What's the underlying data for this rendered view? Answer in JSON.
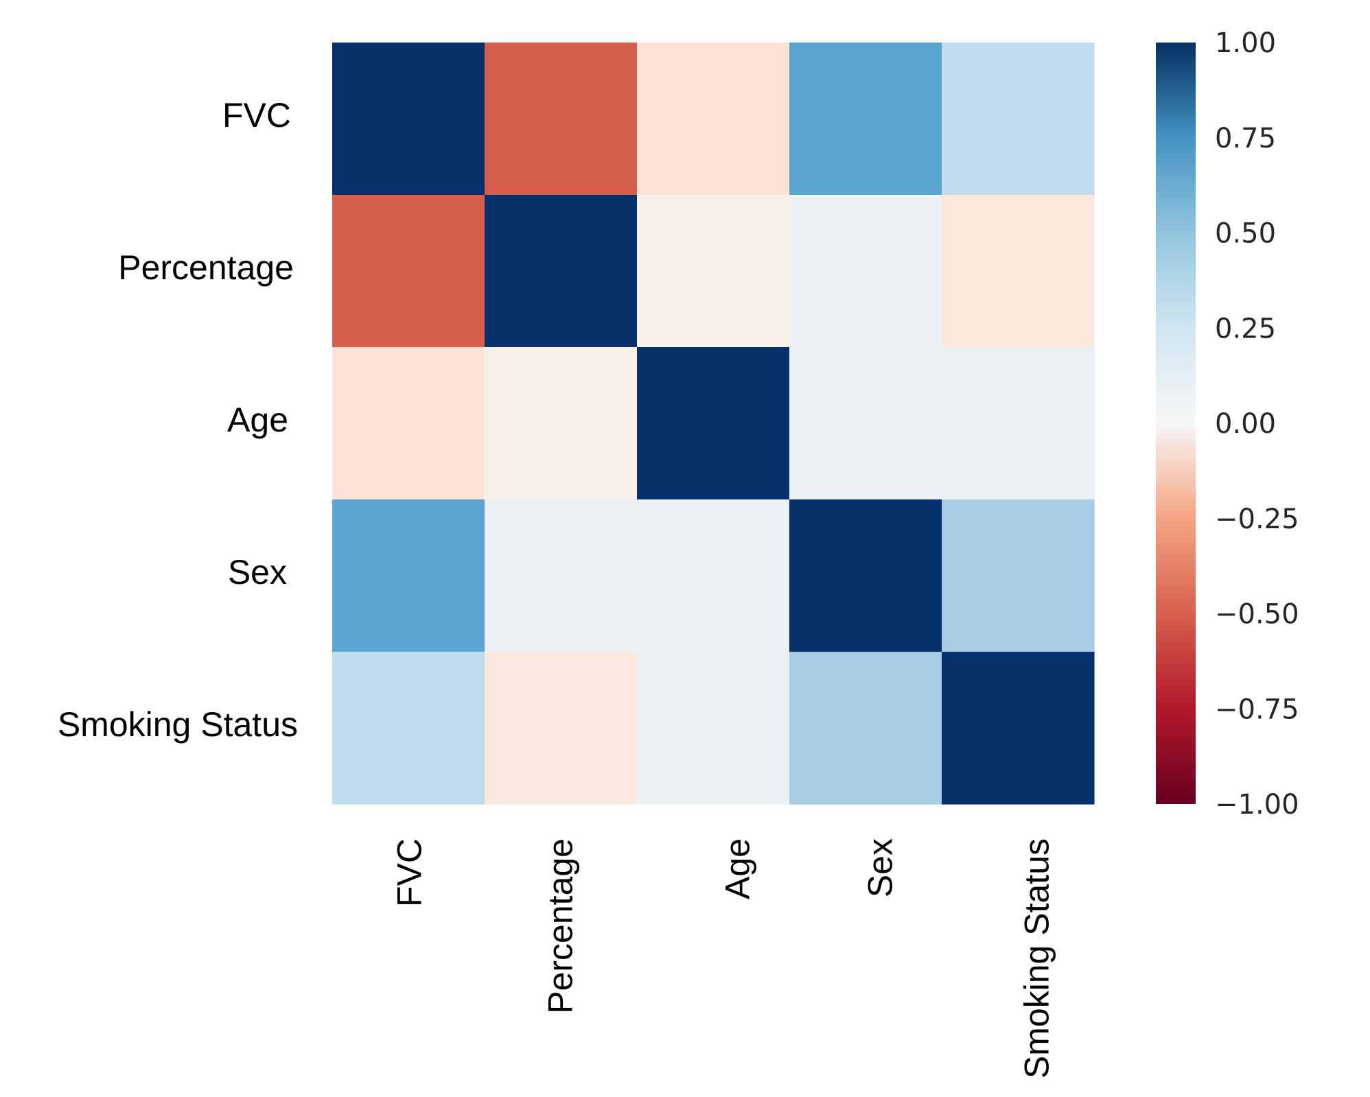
{
  "chart_data": {
    "type": "heatmap",
    "row_labels": [
      "FVC",
      "Percentage",
      "Age",
      "Sex",
      "Smoking Status"
    ],
    "col_labels": [
      "FVC",
      "Percentage",
      "Age",
      "Sex",
      "Smoking Status"
    ],
    "values": [
      [
        1.0,
        -0.55,
        -0.12,
        0.5,
        0.26
      ],
      [
        -0.55,
        1.0,
        -0.05,
        0.04,
        -0.12
      ],
      [
        -0.12,
        -0.05,
        1.0,
        0.05,
        0.05
      ],
      [
        0.5,
        0.04,
        0.05,
        1.0,
        0.33
      ],
      [
        0.26,
        -0.09,
        0.05,
        0.33,
        1.0
      ]
    ],
    "colorbar": {
      "min": -1.0,
      "max": 1.0,
      "ticks": [
        1.0,
        0.75,
        0.5,
        0.25,
        0.0,
        -0.25,
        -0.5,
        -0.75,
        -1.0
      ],
      "tick_labels": [
        "1.00",
        "0.75",
        "0.50",
        "0.25",
        "0.00",
        "−0.25",
        "−0.50",
        "−0.75",
        "−1.00"
      ],
      "colormap": "RdBu",
      "colormap_stops": [
        {
          "value": -1.0,
          "color": "#67001f"
        },
        {
          "value": -0.75,
          "color": "#b2182b"
        },
        {
          "value": -0.5,
          "color": "#d6604d"
        },
        {
          "value": -0.25,
          "color": "#f4a582"
        },
        {
          "value": 0.0,
          "color": "#f7f7f7"
        },
        {
          "value": 0.25,
          "color": "#d1e5f0"
        },
        {
          "value": 0.5,
          "color": "#92c5de"
        },
        {
          "value": 0.75,
          "color": "#4393c3"
        },
        {
          "value": 1.0,
          "color": "#053061"
        }
      ]
    },
    "cell_colors": [
      [
        "#08306b",
        "#d6604d",
        "#fbe3d7",
        "#5ba6d0",
        "#c1dcec"
      ],
      [
        "#d6604d",
        "#08306b",
        "#f9efe9",
        "#eaf0f4",
        "#fbe7dc"
      ],
      [
        "#fbe3d7",
        "#f9efe9",
        "#08306b",
        "#eaf0f4",
        "#eaf0f4"
      ],
      [
        "#5ba6d0",
        "#eaf0f4",
        "#eaf0f4",
        "#08306b",
        "#a6cde3"
      ],
      [
        "#c1dcec",
        "#fae9df",
        "#eaf0f4",
        "#a6cde3",
        "#08306b"
      ]
    ],
    "xlabel": "",
    "ylabel": "",
    "title": ""
  }
}
